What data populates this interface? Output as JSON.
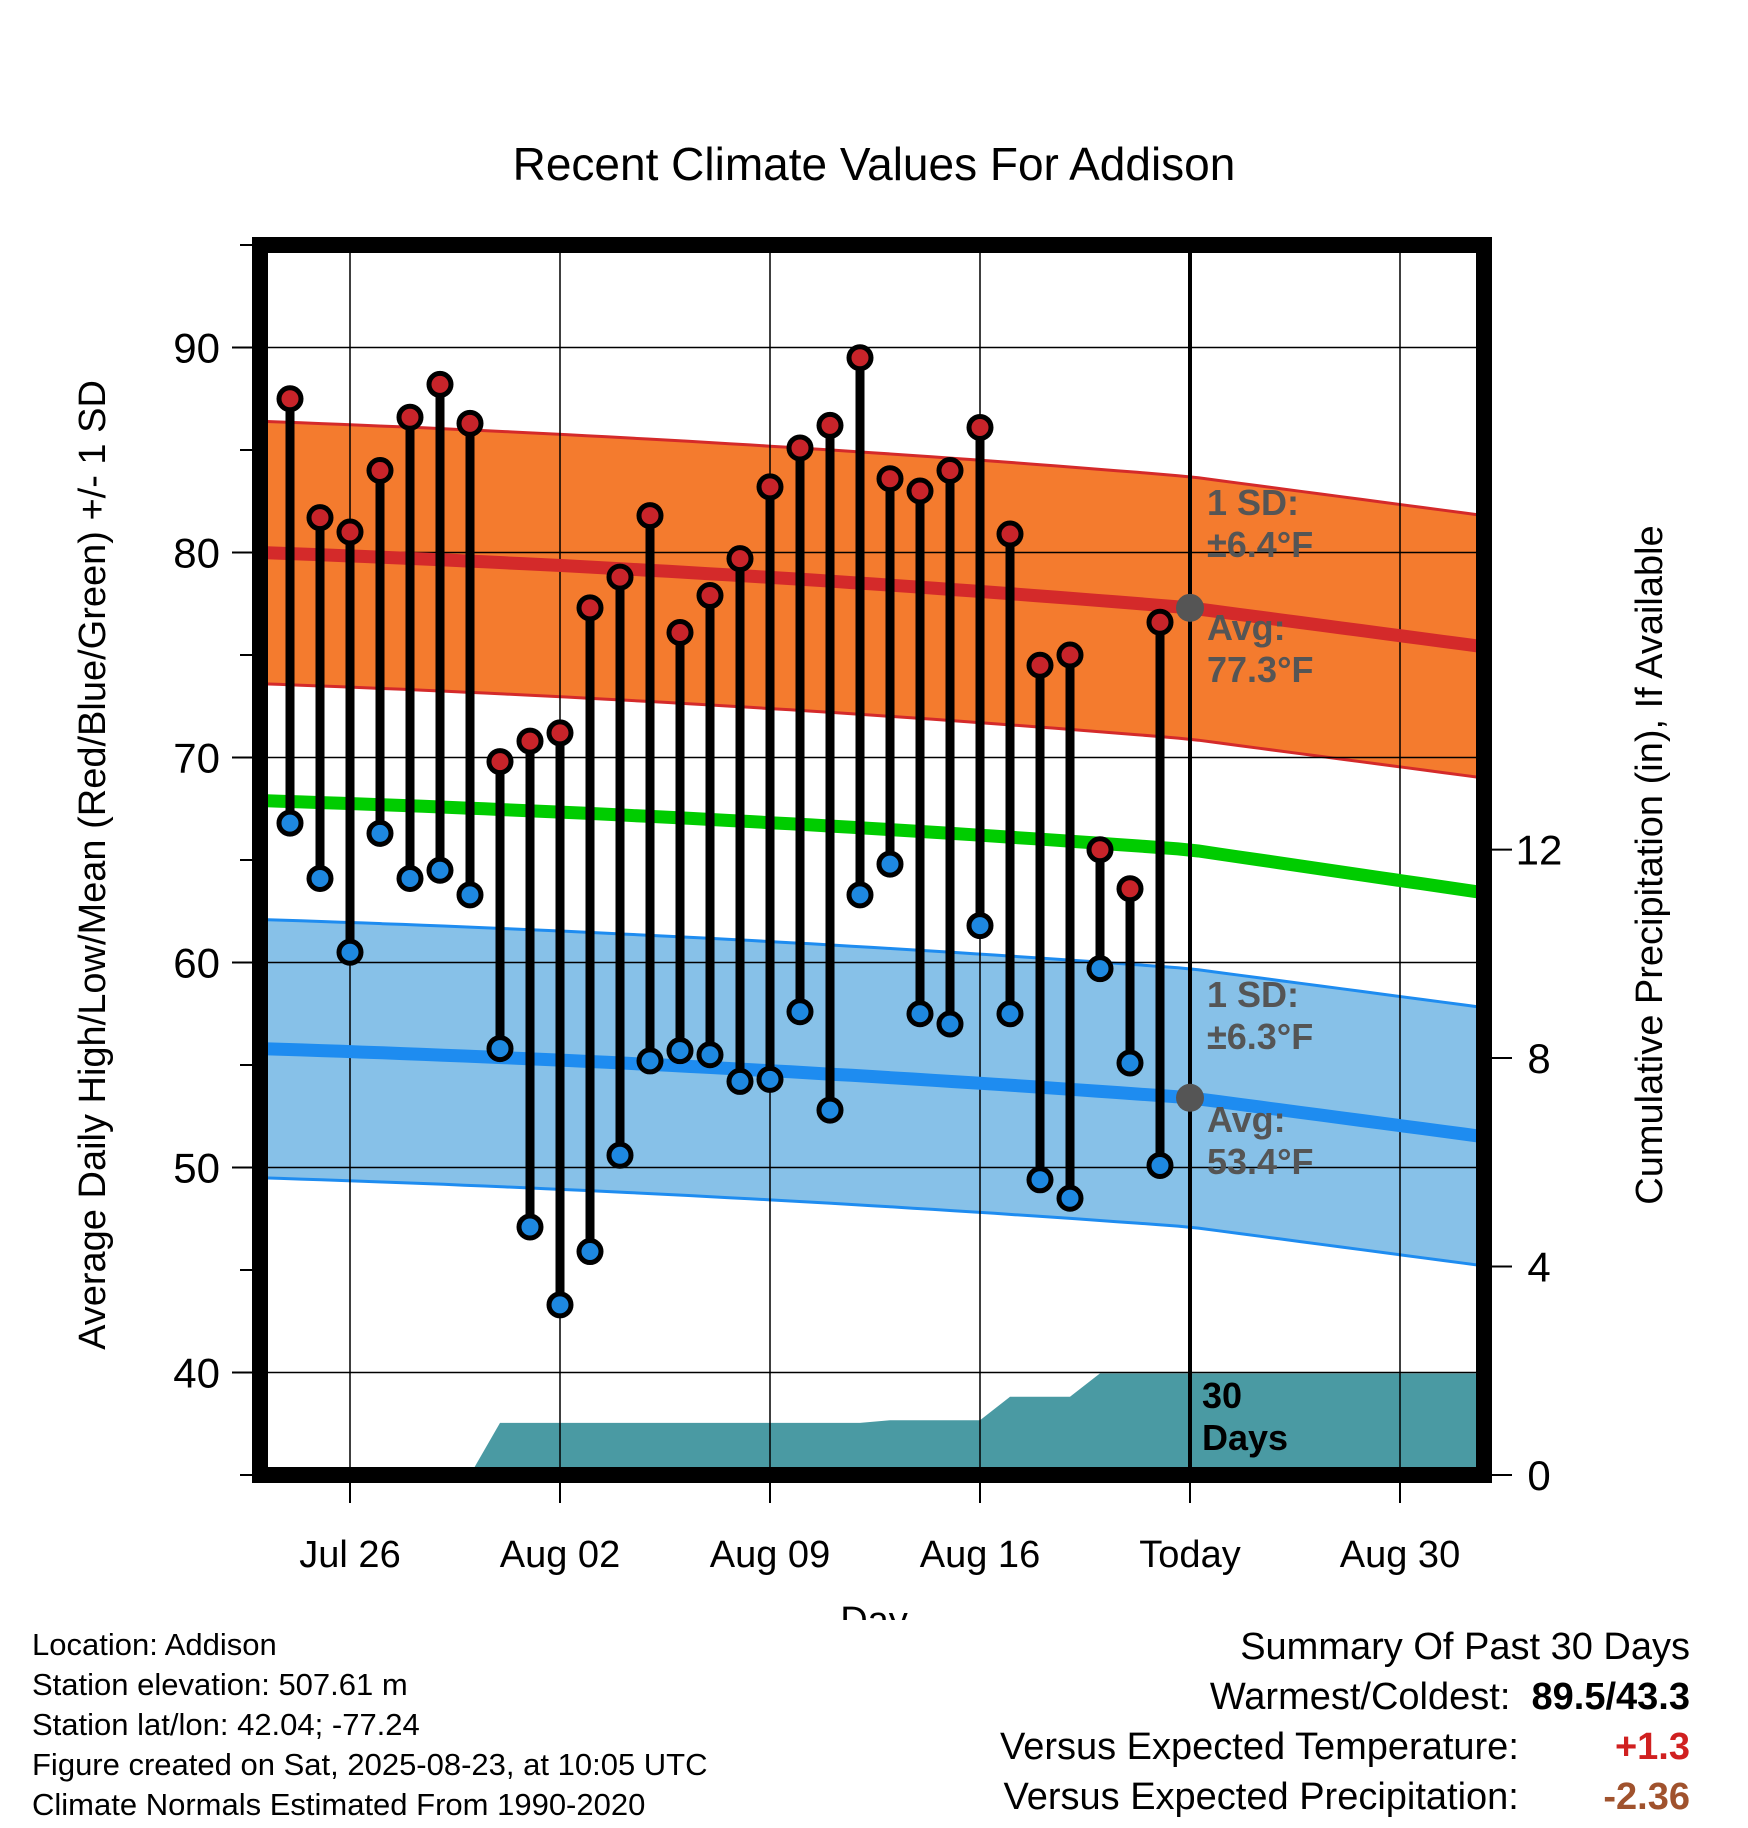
{
  "chart_data": {
    "type": "line",
    "title": "Recent Climate Values For Addison",
    "xlabel": "Day",
    "ylabel_left": "Average Daily High/Low/Mean (Red/Blue/Green) +/- 1 SD",
    "ylabel_right": "Cumulative Precipitation (in), If Available",
    "x_tick_labels": [
      "Jul 26",
      "Aug 02",
      "Aug 09",
      "Aug 16",
      "Today",
      "Aug 30"
    ],
    "y_left_ticks": [
      40,
      50,
      60,
      70,
      80,
      90
    ],
    "y_left_range": [
      35,
      95
    ],
    "y_right_ticks": [
      0,
      4,
      8,
      12
    ],
    "y_right_range": [
      0,
      23.6
    ],
    "grid": true,
    "today_offset_days": 30,
    "highs": [
      87.5,
      81.7,
      81.0,
      84.0,
      86.6,
      88.2,
      86.3,
      69.8,
      70.8,
      71.2,
      77.3,
      78.8,
      81.8,
      76.1,
      77.9,
      79.7,
      83.2,
      85.1,
      86.2,
      89.5,
      83.6,
      83.0,
      84.0,
      86.1,
      80.9,
      74.5,
      75.0,
      65.5,
      63.6,
      76.6
    ],
    "lows": [
      66.8,
      64.1,
      60.5,
      66.3,
      64.1,
      64.5,
      63.3,
      55.8,
      47.1,
      43.3,
      45.9,
      50.6,
      55.2,
      55.7,
      55.5,
      54.2,
      54.3,
      57.6,
      52.8,
      63.3,
      64.8,
      57.5,
      57.0,
      61.8,
      57.5,
      49.4,
      48.5,
      59.7,
      55.1,
      50.1
    ],
    "normal_high": {
      "start": 80.0,
      "today": 77.3,
      "end": 75.4,
      "sd": 6.4
    },
    "normal_mean": {
      "start": 67.9,
      "today": 65.5,
      "end": 63.4
    },
    "normal_low": {
      "start": 55.8,
      "today": 53.4,
      "end": 51.5,
      "sd": 6.3
    },
    "precip_cumulative_steps": [
      {
        "day": 6,
        "value": 0
      },
      {
        "day": 7,
        "value": 1.0
      },
      {
        "day": 19,
        "value": 1.0
      },
      {
        "day": 20,
        "value": 1.05
      },
      {
        "day": 23,
        "value": 1.05
      },
      {
        "day": 24,
        "value": 1.5
      },
      {
        "day": 26,
        "value": 1.5
      },
      {
        "day": 27,
        "value": 1.95
      },
      {
        "day": 39.8,
        "value": 1.95
      }
    ],
    "annotations": {
      "high_sd_label": "1 SD:",
      "high_sd_value": "±6.4°F",
      "high_avg_label": "Avg:",
      "high_avg_value": "77.3°F",
      "low_sd_label": "1 SD:",
      "low_sd_value": "±6.3°F",
      "low_avg_label": "Avg:",
      "low_avg_value": "53.4°F",
      "precip_label_1": "30",
      "precip_label_2": "Days"
    },
    "colors": {
      "high_band": "#f47b2e",
      "high_line": "#d42a2a",
      "mean_line": "#00cc00",
      "low_band": "#87c1e8",
      "low_line": "#1e8cf0",
      "precip": "#4a9aa3",
      "high_dot": "#c8242a",
      "low_dot": "#1e88e0"
    }
  },
  "footer": {
    "location": "Location: Addison",
    "elevation": "Station elevation: 507.61 m",
    "latlon": "Station lat/lon: 42.04; -77.24",
    "created": "Figure created on Sat, 2025-08-23, at 10:05 UTC",
    "normals": "Climate Normals Estimated From 1990-2020"
  },
  "summary": {
    "title": "Summary Of Past 30 Days",
    "warmest_coldest_label": "Warmest/Coldest:",
    "warmest_coldest_value": "89.5/43.3",
    "temp_label": "Versus Expected Temperature:",
    "temp_value": "+1.3",
    "precip_label": "Versus Expected Precipitation:",
    "precip_value": "-2.36"
  }
}
